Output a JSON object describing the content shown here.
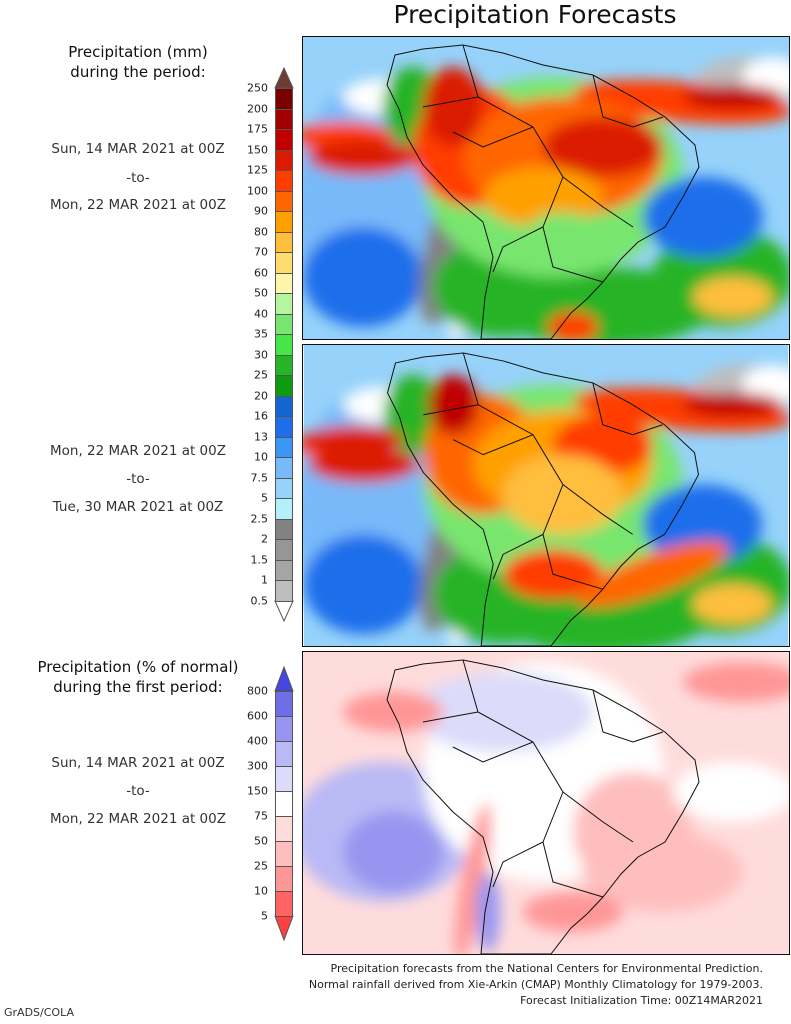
{
  "title": "Precipitation Forecasts",
  "panels": [
    {
      "heading1": "Precipitation (mm)",
      "heading2": "during the period:",
      "start": "Sun, 14 MAR 2021 at 00Z",
      "sep": "-to-",
      "end": "Mon, 22 MAR 2021 at 00Z"
    },
    {
      "start": "Mon, 22 MAR 2021 at 00Z",
      "sep": "-to-",
      "end": "Tue, 30 MAR 2021 at 00Z"
    },
    {
      "heading1": "Precipitation (% of normal)",
      "heading2": "during the first period:",
      "start": "Sun, 14 MAR 2021 at 00Z",
      "sep": "-to-",
      "end": "Mon, 22 MAR 2021 at 00Z"
    }
  ],
  "precip_scale": {
    "unit": "mm",
    "labels": [
      "250",
      "200",
      "175",
      "150",
      "125",
      "100",
      "90",
      "80",
      "70",
      "60",
      "50",
      "40",
      "35",
      "30",
      "25",
      "20",
      "16",
      "13",
      "10",
      "7.5",
      "5",
      "2.5",
      "2",
      "1.5",
      "1",
      "0.5"
    ],
    "colors": [
      "#7a0000",
      "#a00000",
      "#c00000",
      "#dc1a00",
      "#ff3c00",
      "#ff6600",
      "#ffa000",
      "#ffbe3c",
      "#ffdc6e",
      "#fff5aa",
      "#b4f5a0",
      "#78e66e",
      "#46e646",
      "#28b428",
      "#0f9b0f",
      "#1464d2",
      "#1e6eeb",
      "#3c96f5",
      "#78b9fa",
      "#96d2fa",
      "#b4f0fa",
      "#828282",
      "#969696",
      "#a5a5a5",
      "#bebebe"
    ],
    "over_color": "#6e3c32",
    "under_color": "#ffffff"
  },
  "pct_scale": {
    "unit": "% of normal",
    "labels": [
      "800",
      "600",
      "400",
      "300",
      "150",
      "75",
      "50",
      "25",
      "10",
      "5"
    ],
    "colors": [
      "#6e6ee6",
      "#9696f0",
      "#b9b9f5",
      "#dcdcfa",
      "#ffffff",
      "#ffdcdc",
      "#ffbebe",
      "#ff9696",
      "#ff6464"
    ],
    "over_color": "#4646e0",
    "under_color": "#ff4040"
  },
  "footer": [
    "Precipitation forecasts from the National Centers for Environmental Prediction.",
    "Normal rainfall derived from Xie-Arkin (CMAP) Monthly Climatology for 1979-2003.",
    "Forecast Initialization Time: 00Z14MAR2021"
  ],
  "credit": "GrADS/COLA"
}
